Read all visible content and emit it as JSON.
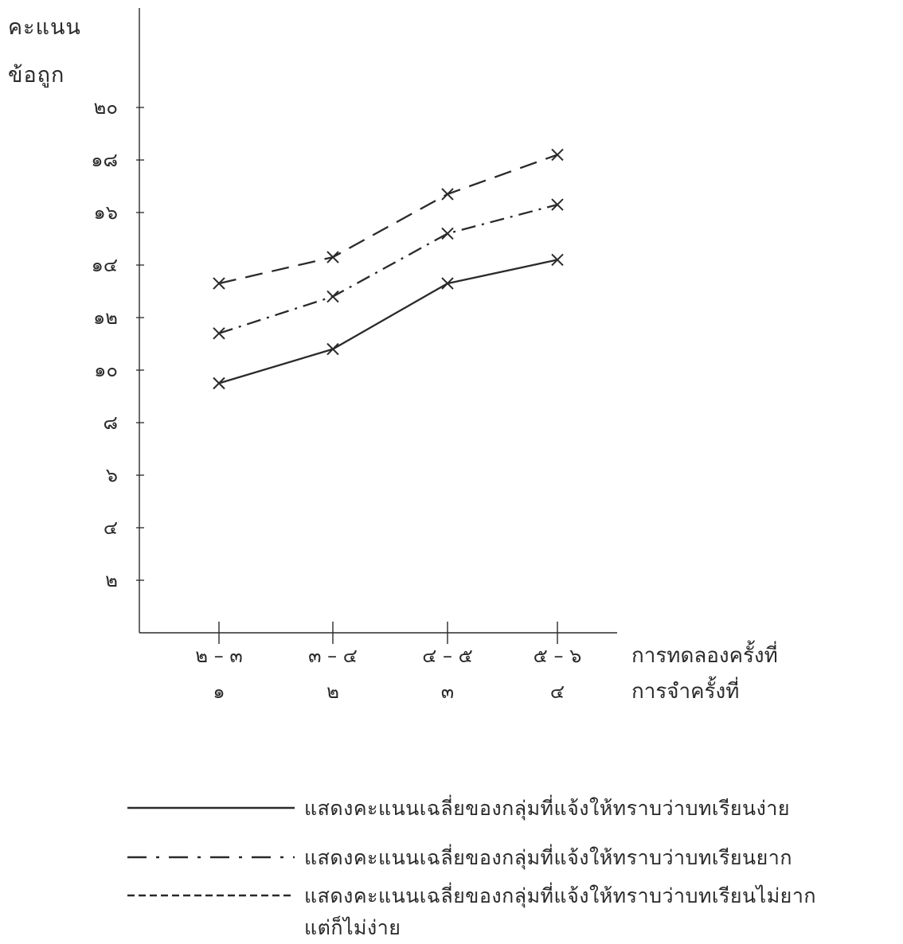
{
  "chart_data": {
    "type": "line",
    "ylabel": [
      "คะแนน",
      "ข้อถูก"
    ],
    "xlabel_trials": "การทดลองครั้งที่",
    "xlabel_recall": "การจำครั้งที่",
    "y_ticks": [
      "๒",
      "๔",
      "๖",
      "๘",
      "๑๐",
      "๑๒",
      "๑๔",
      "๑๖",
      "๑๘",
      "๒๐"
    ],
    "y_tick_values": [
      2,
      4,
      6,
      8,
      10,
      12,
      14,
      16,
      18,
      20
    ],
    "ylim": [
      0,
      21
    ],
    "categories_trials": [
      "๒ – ๓",
      "๓ – ๔",
      "๔ – ๕",
      "๕ – ๖"
    ],
    "categories_recall": [
      "๑",
      "๒",
      "๓",
      "๔"
    ],
    "grid": false,
    "series": [
      {
        "name": "แสดงคะแนนเฉลี่ยของกลุ่มที่แจ้งให้ทราบว่าบทเรียนง่าย",
        "style": "solid",
        "values": [
          9.5,
          10.8,
          13.3,
          14.2
        ]
      },
      {
        "name": "แสดงคะแนนเฉลี่ยของกลุ่มที่แจ้งให้ทราบว่าบทเรียนยาก",
        "style": "dash-dot",
        "values": [
          11.4,
          12.8,
          15.2,
          16.3
        ]
      },
      {
        "name": "แสดงคะแนนเฉลี่ยของกลุ่มที่แจ้งให้ทราบว่าบทเรียนไม่ยากแต่ก็ไม่ง่าย",
        "style": "dashed",
        "values": [
          13.3,
          14.3,
          16.7,
          18.2
        ]
      }
    ]
  },
  "legend": {
    "placement": "bottom",
    "items": [
      {
        "style": "solid",
        "lines": [
          "แสดงคะแนนเฉลี่ยของกลุ่มที่แจ้งให้ทราบว่าบทเรียนง่าย"
        ]
      },
      {
        "style": "dash-dot",
        "lines": [
          "แสดงคะแนนเฉลี่ยของกลุ่มที่แจ้งให้ทราบว่าบทเรียนยาก"
        ]
      },
      {
        "style": "dashed",
        "lines": [
          "แสดงคะแนนเฉลี่ยของกลุ่มที่แจ้งให้ทราบว่าบทเรียนไม่ยาก",
          "แต่ก็ไม่ง่าย"
        ]
      }
    ]
  },
  "colors": {
    "ink": "#2a2a2a"
  }
}
